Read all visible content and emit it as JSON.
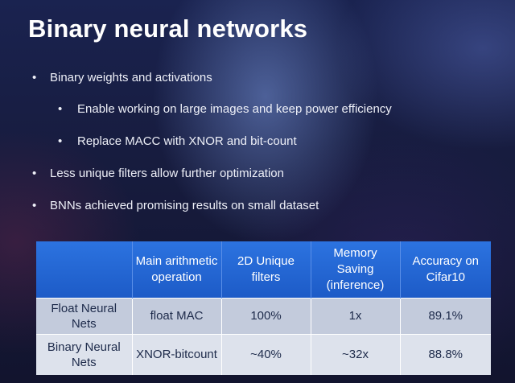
{
  "slide": {
    "title": "Binary neural networks",
    "bullets": [
      {
        "text": "Binary weights and activations",
        "level": 1
      },
      {
        "text": "Enable working on large images and keep power efficiency",
        "level": 2
      },
      {
        "text": "Replace MACC with XNOR and bit-count",
        "level": 2
      },
      {
        "text": "Less unique filters allow further optimization",
        "level": 1
      },
      {
        "text": "BNNs achieved promising results on small dataset",
        "level": 1
      }
    ],
    "bullet_symbol": "•"
  },
  "table": {
    "headers": [
      "",
      "Main arithmetic operation",
      "2D Unique filters",
      "Memory Saving (inference)",
      "Accuracy on Cifar10"
    ],
    "rows": [
      [
        "Float Neural Nets",
        "float MAC",
        "100%",
        "1x",
        "89.1%"
      ],
      [
        "Binary Neural Nets",
        "XNOR-bitcount",
        "~40%",
        "~32x",
        "88.8%"
      ]
    ]
  },
  "colors": {
    "header_bg": "#2268d6",
    "row1_bg": "#c3cbdc",
    "row2_bg": "#dde2ec",
    "background": "#171c3f"
  }
}
